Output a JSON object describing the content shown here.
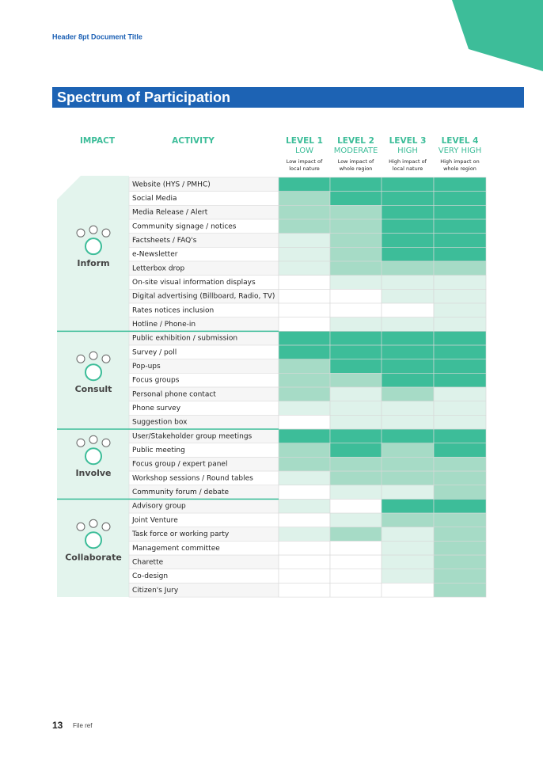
{
  "header_title": "Header 8pt Document Title",
  "title": "Spectrum of Participation",
  "columns": {
    "impact": "IMPACT",
    "activity": "ACTIVITY",
    "levels": [
      {
        "level": "LEVEL 1",
        "name": "LOW",
        "desc": [
          "Low impact of",
          "local nature"
        ]
      },
      {
        "level": "LEVEL 2",
        "name": "MODERATE",
        "desc": [
          "Low impact of",
          "whole region"
        ]
      },
      {
        "level": "LEVEL 3",
        "name": "HIGH",
        "desc": [
          "High impact of",
          "local nature"
        ]
      },
      {
        "level": "LEVEL 4",
        "name": "VERY HIGH",
        "desc": [
          "High impact on",
          "whole region"
        ]
      }
    ]
  },
  "groups": [
    {
      "name": "Inform",
      "rows": [
        {
          "activity": "Website (HYS / PMHC)",
          "shades": [
            "#3dbd99",
            "#3dbd99",
            "#3dbd99",
            "#3dbd99"
          ]
        },
        {
          "activity": "Social Media",
          "shades": [
            "#a6dbc6",
            "#3dbd99",
            "#3dbd99",
            "#3dbd99"
          ]
        },
        {
          "activity": "Media Release / Alert",
          "shades": [
            "#a6dbc6",
            "#a6dbc6",
            "#3dbd99",
            "#3dbd99"
          ]
        },
        {
          "activity": "Community signage / notices",
          "shades": [
            "#a6dbc6",
            "#a6dbc6",
            "#3dbd99",
            "#3dbd99"
          ]
        },
        {
          "activity": "Factsheets / FAQ's",
          "shades": [
            "#def2ea",
            "#a6dbc6",
            "#3dbd99",
            "#3dbd99"
          ]
        },
        {
          "activity": "e-Newsletter",
          "shades": [
            "#def2ea",
            "#a6dbc6",
            "#3dbd99",
            "#3dbd99"
          ]
        },
        {
          "activity": "Letterbox drop",
          "shades": [
            "#def2ea",
            "#a6dbc6",
            "#a6dbc6",
            "#a6dbc6"
          ]
        },
        {
          "activity": "On-site visual information displays",
          "shades": [
            "#ffffff",
            "#def2ea",
            "#def2ea",
            "#def2ea"
          ]
        },
        {
          "activity": "Digital advertising (Billboard, Radio, TV)",
          "shades": [
            "#ffffff",
            "#ffffff",
            "#def2ea",
            "#def2ea"
          ]
        },
        {
          "activity": "Rates notices inclusion",
          "shades": [
            "#ffffff",
            "#ffffff",
            "#ffffff",
            "#def2ea"
          ]
        },
        {
          "activity": "Hotline / Phone-in",
          "shades": [
            "#ffffff",
            "#def2ea",
            "#def2ea",
            "#def2ea"
          ]
        }
      ]
    },
    {
      "name": "Consult",
      "rows": [
        {
          "activity": "Public exhibition / submission",
          "shades": [
            "#3dbd99",
            "#3dbd99",
            "#3dbd99",
            "#3dbd99"
          ]
        },
        {
          "activity": "Survey / poll",
          "shades": [
            "#3dbd99",
            "#3dbd99",
            "#3dbd99",
            "#3dbd99"
          ]
        },
        {
          "activity": "Pop-ups",
          "shades": [
            "#a6dbc6",
            "#3dbd99",
            "#3dbd99",
            "#3dbd99"
          ]
        },
        {
          "activity": "Focus groups",
          "shades": [
            "#a6dbc6",
            "#a6dbc6",
            "#3dbd99",
            "#3dbd99"
          ]
        },
        {
          "activity": "Personal phone contact",
          "shades": [
            "#a6dbc6",
            "#def2ea",
            "#a6dbc6",
            "#def2ea"
          ]
        },
        {
          "activity": "Phone survey",
          "shades": [
            "#def2ea",
            "#def2ea",
            "#def2ea",
            "#def2ea"
          ]
        },
        {
          "activity": "Suggestion box",
          "shades": [
            "#ffffff",
            "#def2ea",
            "#def2ea",
            "#def2ea"
          ]
        }
      ]
    },
    {
      "name": "Involve",
      "rows": [
        {
          "activity": "User/Stakeholder group meetings",
          "shades": [
            "#3dbd99",
            "#3dbd99",
            "#3dbd99",
            "#3dbd99"
          ]
        },
        {
          "activity": "Public meeting",
          "shades": [
            "#a6dbc6",
            "#3dbd99",
            "#a6dbc6",
            "#3dbd99"
          ]
        },
        {
          "activity": "Focus group / expert panel",
          "shades": [
            "#a6dbc6",
            "#a6dbc6",
            "#a6dbc6",
            "#a6dbc6"
          ]
        },
        {
          "activity": "Workshop sessions / Round tables",
          "shades": [
            "#def2ea",
            "#a6dbc6",
            "#a6dbc6",
            "#a6dbc6"
          ]
        },
        {
          "activity": "Community forum / debate",
          "shades": [
            "#ffffff",
            "#def2ea",
            "#def2ea",
            "#a6dbc6"
          ]
        }
      ]
    },
    {
      "name": "Collaborate",
      "rows": [
        {
          "activity": "Advisory group",
          "shades": [
            "#def2ea",
            "#ffffff",
            "#3dbd99",
            "#3dbd99"
          ]
        },
        {
          "activity": "Joint Venture",
          "shades": [
            "#ffffff",
            "#def2ea",
            "#a6dbc6",
            "#a6dbc6"
          ]
        },
        {
          "activity": "Task force or working party",
          "shades": [
            "#def2ea",
            "#a6dbc6",
            "#def2ea",
            "#a6dbc6"
          ]
        },
        {
          "activity": "Management committee",
          "shades": [
            "#ffffff",
            "#ffffff",
            "#def2ea",
            "#a6dbc6"
          ]
        },
        {
          "activity": "Charette",
          "shades": [
            "#ffffff",
            "#ffffff",
            "#def2ea",
            "#a6dbc6"
          ]
        },
        {
          "activity": "Co-design",
          "shades": [
            "#ffffff",
            "#ffffff",
            "#def2ea",
            "#a6dbc6"
          ]
        },
        {
          "activity": "Citizen's Jury",
          "shades": [
            "#ffffff",
            "#ffffff",
            "#ffffff",
            "#a6dbc6"
          ]
        }
      ]
    }
  ],
  "footer": {
    "page": "13",
    "ref": "File ref"
  }
}
